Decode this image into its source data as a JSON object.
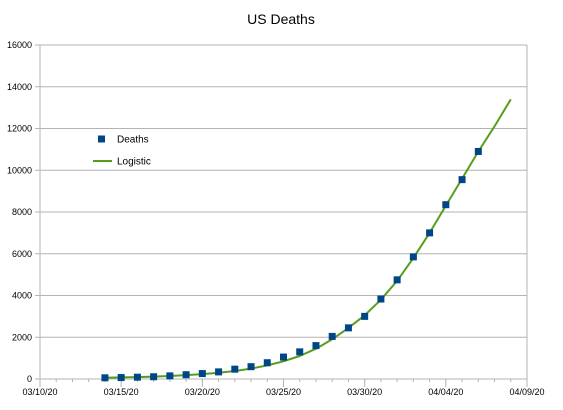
{
  "chart_data": {
    "type": "scatter",
    "title": "US Deaths",
    "xlabel": "",
    "ylabel": "",
    "x_axis": {
      "type": "date",
      "range": [
        "03/10/20",
        "04/09/20"
      ],
      "tick_labels": [
        "03/10/20",
        "03/15/20",
        "03/20/20",
        "03/25/20",
        "03/30/20",
        "04/04/20",
        "04/09/20"
      ]
    },
    "y_axis": {
      "range": [
        0,
        16000
      ],
      "tick_labels": [
        "0",
        "2000",
        "4000",
        "6000",
        "8000",
        "10000",
        "12000",
        "14000",
        "16000"
      ]
    },
    "grid": "horizontal",
    "legend": {
      "position": "left",
      "entries": [
        "Deaths",
        "Logistic"
      ]
    },
    "colors": {
      "deaths_marker": "#004586",
      "logistic_line": "#579d1c",
      "grid": "#b3b3b3",
      "axis": "#b3b3b3"
    },
    "series": [
      {
        "name": "Deaths",
        "kind": "markers",
        "x": [
          "03/14/20",
          "03/15/20",
          "03/16/20",
          "03/17/20",
          "03/18/20",
          "03/19/20",
          "03/20/20",
          "03/21/20",
          "03/22/20",
          "03/23/20",
          "03/24/20",
          "03/25/20",
          "03/26/20",
          "03/27/20",
          "03/28/20",
          "03/29/20",
          "03/30/20",
          "03/31/20",
          "04/01/20",
          "04/02/20",
          "04/03/20",
          "04/04/20",
          "04/05/20",
          "04/06/20"
        ],
        "y": [
          57,
          69,
          87,
          108,
          150,
          205,
          260,
          340,
          471,
          590,
          780,
          1050,
          1300,
          1600,
          2040,
          2450,
          3000,
          3830,
          4750,
          5850,
          7000,
          8350,
          9550,
          10900
        ]
      },
      {
        "name": "Logistic",
        "kind": "line",
        "x": [
          "03/14/20",
          "03/15/20",
          "03/16/20",
          "03/17/20",
          "03/18/20",
          "03/19/20",
          "03/20/20",
          "03/21/20",
          "03/22/20",
          "03/23/20",
          "03/24/20",
          "03/25/20",
          "03/26/20",
          "03/27/20",
          "03/28/20",
          "03/29/20",
          "03/30/20",
          "03/31/20",
          "04/01/20",
          "04/02/20",
          "04/03/20",
          "04/04/20",
          "04/05/20",
          "04/06/20",
          "04/07/20",
          "04/08/20"
        ],
        "y": [
          60,
          75,
          92,
          115,
          145,
          185,
          235,
          300,
          385,
          500,
          650,
          850,
          1100,
          1450,
          1900,
          2450,
          3050,
          3800,
          4700,
          5800,
          7000,
          8300,
          9600,
          10900,
          12100,
          13400
        ]
      }
    ]
  }
}
